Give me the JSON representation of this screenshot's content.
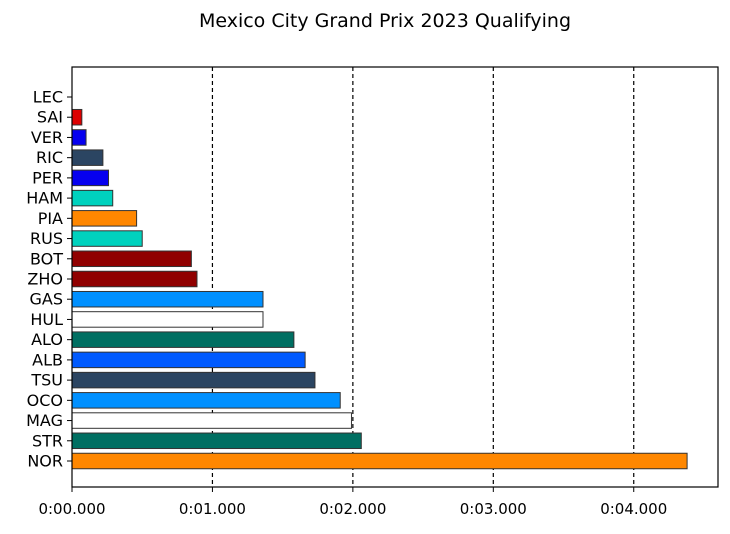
{
  "chart_data": {
    "type": "bar",
    "orientation": "horizontal",
    "title": "Mexico City Grand Prix 2023 Qualifying",
    "xlabel": "",
    "ylabel": "",
    "xlim": [
      0,
      4.6
    ],
    "x_ticks": [
      0,
      1,
      2,
      3,
      4
    ],
    "x_tick_labels": [
      "0:00.000",
      "0:01.000",
      "0:02.000",
      "0:03.000",
      "0:04.000"
    ],
    "grid": "vertical dashed lines at major x ticks",
    "bars": [
      {
        "label": "LEC",
        "value": 0.0,
        "color": "#dc0000"
      },
      {
        "label": "SAI",
        "value": 0.07,
        "color": "#dc0000"
      },
      {
        "label": "VER",
        "value": 0.1,
        "color": "#0600ef"
      },
      {
        "label": "RIC",
        "value": 0.22,
        "color": "#2b4562"
      },
      {
        "label": "PER",
        "value": 0.26,
        "color": "#0600ef"
      },
      {
        "label": "HAM",
        "value": 0.29,
        "color": "#00d2be"
      },
      {
        "label": "PIA",
        "value": 0.46,
        "color": "#ff8700"
      },
      {
        "label": "RUS",
        "value": 0.5,
        "color": "#00d2be"
      },
      {
        "label": "BOT",
        "value": 0.85,
        "color": "#900000"
      },
      {
        "label": "ZHO",
        "value": 0.89,
        "color": "#900000"
      },
      {
        "label": "GAS",
        "value": 1.36,
        "color": "#0090ff"
      },
      {
        "label": "HUL",
        "value": 1.36,
        "color": "#ffffff"
      },
      {
        "label": "ALO",
        "value": 1.58,
        "color": "#006f62"
      },
      {
        "label": "ALB",
        "value": 1.66,
        "color": "#005aff"
      },
      {
        "label": "TSU",
        "value": 1.73,
        "color": "#2b4562"
      },
      {
        "label": "OCO",
        "value": 1.91,
        "color": "#0090ff"
      },
      {
        "label": "MAG",
        "value": 1.99,
        "color": "#ffffff"
      },
      {
        "label": "STR",
        "value": 2.06,
        "color": "#006f62"
      },
      {
        "label": "NOR",
        "value": 4.38,
        "color": "#ff8700"
      }
    ]
  }
}
